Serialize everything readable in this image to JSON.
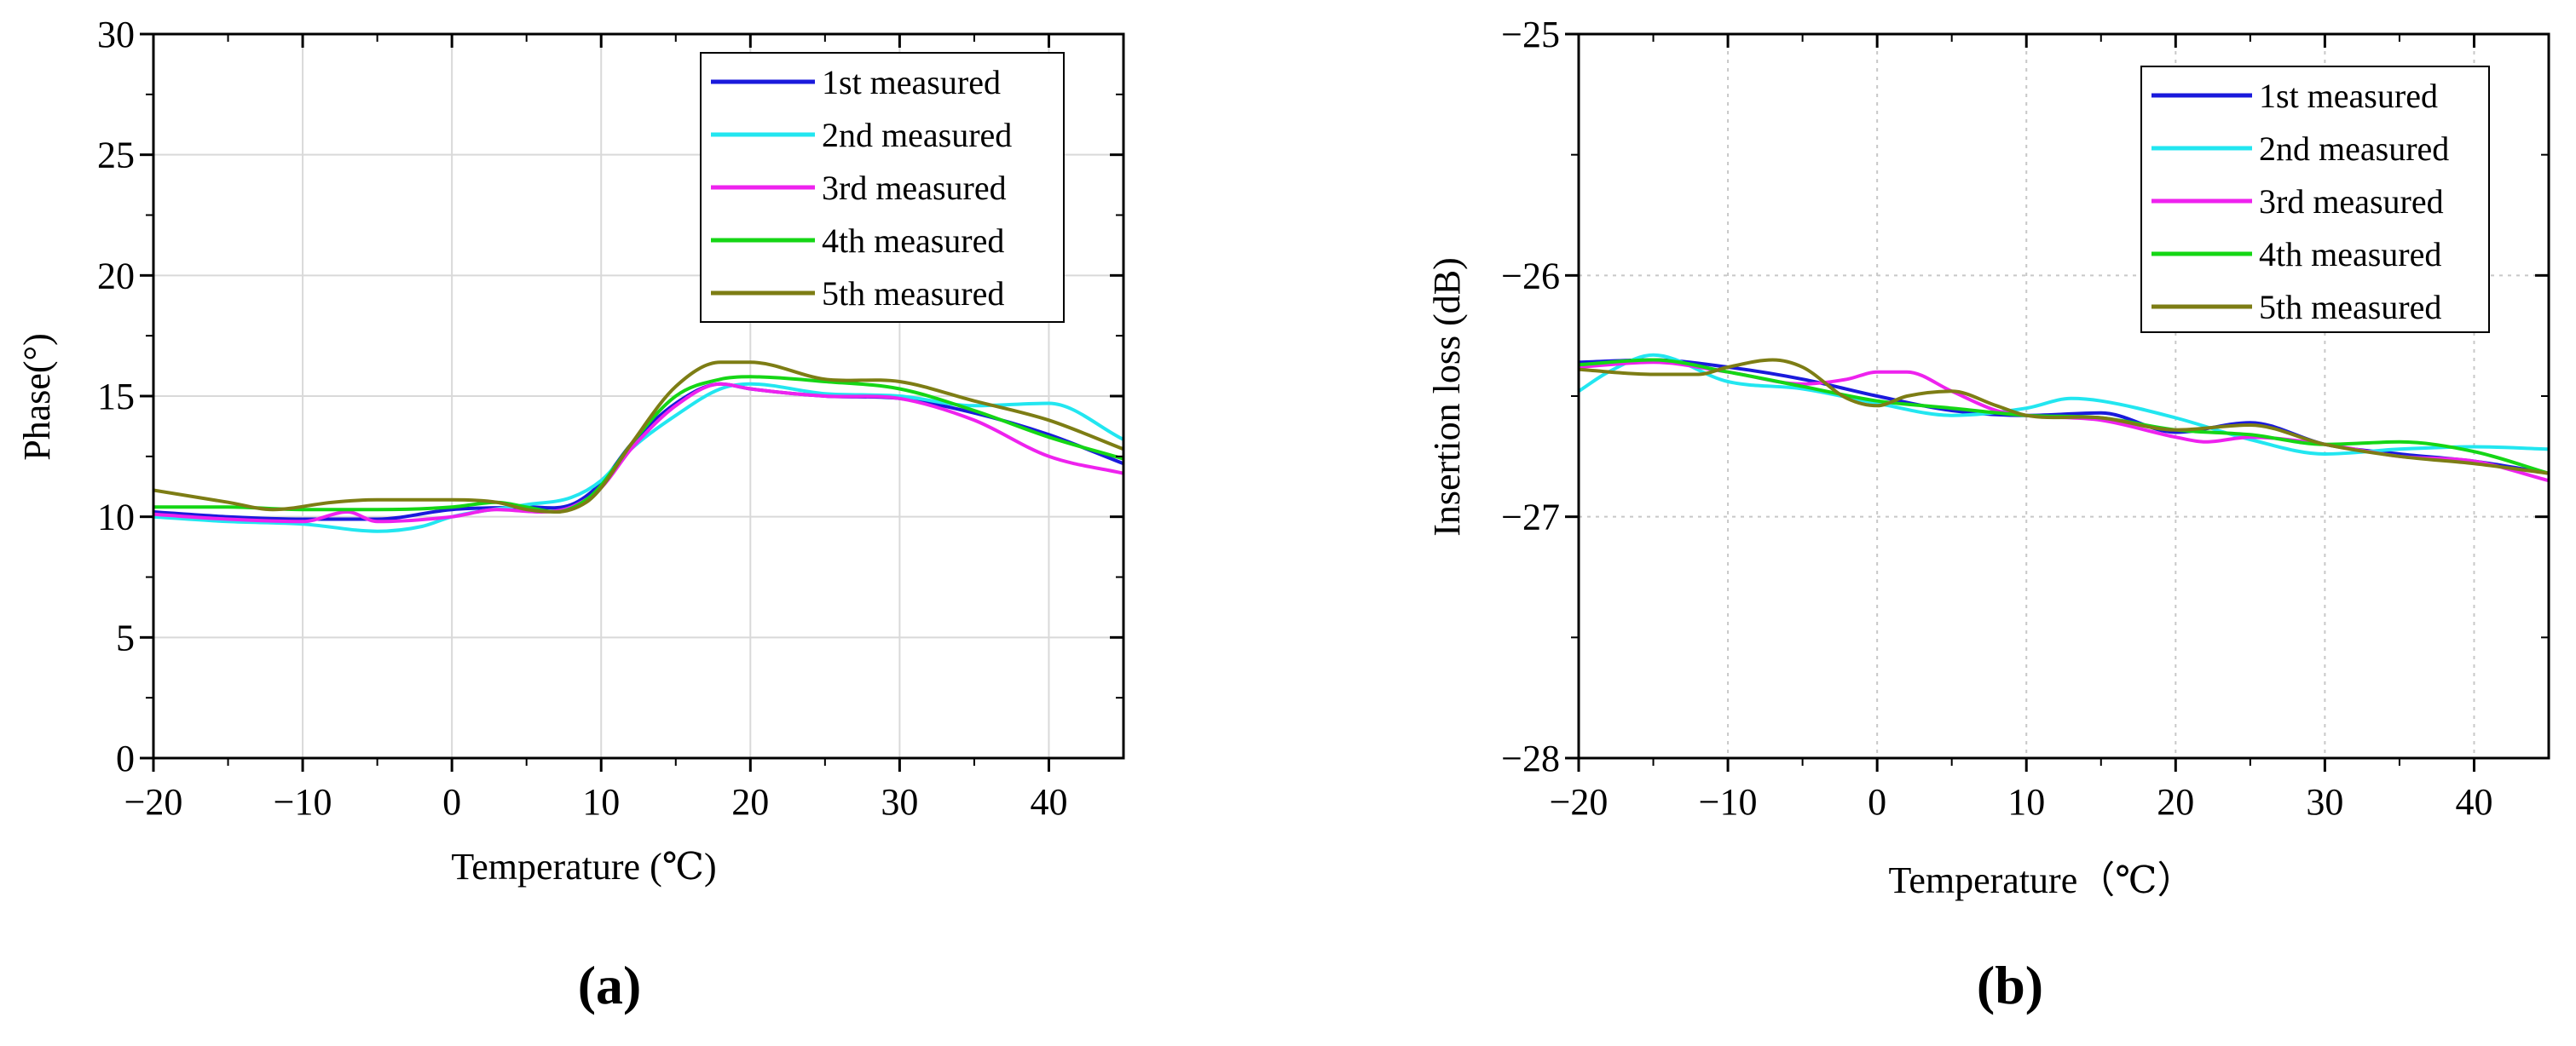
{
  "chart_data": [
    {
      "type": "line",
      "panel_label": "(a)",
      "xlabel": "Temperature (℃)",
      "ylabel": "Phase(°)",
      "xlim": [
        -20,
        45
      ],
      "ylim": [
        0,
        30
      ],
      "x_ticks": [
        -20,
        -10,
        0,
        10,
        20,
        30,
        40
      ],
      "y_ticks": [
        0,
        5,
        10,
        15,
        20,
        25,
        30
      ],
      "x_tick_labels": [
        "−20",
        "−10",
        "0",
        "10",
        "20",
        "30",
        "40"
      ],
      "y_tick_labels": [
        "0",
        "5",
        "10",
        "15",
        "20",
        "25",
        "30"
      ],
      "grid": true,
      "legend_position": "top-right",
      "series": [
        {
          "name": "1st measured",
          "color": "#1a1adc",
          "x": [
            -20,
            -15,
            -10,
            -5,
            0,
            5,
            8,
            10,
            12,
            15,
            18,
            20,
            25,
            30,
            35,
            40,
            45
          ],
          "y": [
            10.2,
            10.0,
            9.9,
            9.9,
            10.3,
            10.4,
            10.5,
            11.4,
            13.0,
            14.7,
            15.5,
            15.3,
            15.0,
            14.9,
            14.3,
            13.4,
            12.2
          ]
        },
        {
          "name": "2nd measured",
          "color": "#22e6f0",
          "x": [
            -20,
            -15,
            -10,
            -5,
            -2,
            0,
            5,
            8,
            10,
            12,
            15,
            18,
            20,
            25,
            30,
            35,
            40,
            45
          ],
          "y": [
            10.0,
            9.8,
            9.7,
            9.4,
            9.6,
            10.0,
            10.5,
            10.8,
            11.5,
            12.8,
            14.2,
            15.3,
            15.5,
            15.1,
            15.0,
            14.6,
            14.7,
            13.2
          ]
        },
        {
          "name": "3rd measured",
          "color": "#ee22ee",
          "x": [
            -20,
            -15,
            -10,
            -7,
            -5,
            0,
            3,
            6,
            8,
            10,
            12,
            15,
            18,
            20,
            25,
            30,
            35,
            40,
            45
          ],
          "y": [
            10.1,
            9.9,
            9.8,
            10.2,
            9.8,
            10.0,
            10.3,
            10.2,
            10.4,
            11.2,
            12.8,
            14.6,
            15.5,
            15.3,
            15.0,
            14.9,
            14.0,
            12.5,
            11.8
          ]
        },
        {
          "name": "4th measured",
          "color": "#15d615",
          "x": [
            -20,
            -15,
            -10,
            -5,
            0,
            3,
            5,
            7,
            9,
            10,
            12,
            15,
            18,
            20,
            25,
            30,
            35,
            40,
            45
          ],
          "y": [
            10.4,
            10.4,
            10.3,
            10.3,
            10.4,
            10.6,
            10.4,
            10.2,
            10.7,
            11.3,
            13.0,
            15.0,
            15.7,
            15.8,
            15.6,
            15.3,
            14.4,
            13.3,
            12.4
          ]
        },
        {
          "name": "5th measured",
          "color": "#7d7d14",
          "x": [
            -20,
            -15,
            -12,
            -8,
            -5,
            0,
            3,
            5,
            7,
            9,
            10,
            12,
            15,
            18,
            20,
            25,
            30,
            35,
            40,
            45
          ],
          "y": [
            11.1,
            10.6,
            10.3,
            10.6,
            10.7,
            10.7,
            10.6,
            10.3,
            10.2,
            10.6,
            11.2,
            13.0,
            15.4,
            16.4,
            16.4,
            15.7,
            15.6,
            14.8,
            14.0,
            12.8
          ]
        }
      ]
    },
    {
      "type": "line",
      "panel_label": "(b)",
      "xlabel": "Temperature（℃）",
      "ylabel": "Insertion loss (dB)",
      "xlim": [
        -20,
        45
      ],
      "ylim": [
        -28,
        -25
      ],
      "x_ticks": [
        -20,
        -10,
        0,
        10,
        20,
        30,
        40
      ],
      "y_ticks": [
        -28,
        -27,
        -26,
        -25
      ],
      "x_tick_labels": [
        "−20",
        "−10",
        "0",
        "10",
        "20",
        "30",
        "40"
      ],
      "y_tick_labels": [
        "−28",
        "−27",
        "−26",
        "−25"
      ],
      "grid": true,
      "grid_style": "dotted",
      "legend_position": "top-right",
      "series": [
        {
          "name": "1st measured",
          "color": "#1a1adc",
          "x": [
            -20,
            -15,
            -10,
            -5,
            0,
            5,
            10,
            15,
            20,
            25,
            30,
            35,
            40,
            45
          ],
          "y": [
            -26.36,
            -26.35,
            -26.38,
            -26.43,
            -26.5,
            -26.56,
            -26.58,
            -26.57,
            -26.65,
            -26.61,
            -26.7,
            -26.74,
            -26.77,
            -26.82
          ]
        },
        {
          "name": "2nd measured",
          "color": "#22e6f0",
          "x": [
            -20,
            -18,
            -15,
            -10,
            -5,
            0,
            5,
            10,
            13,
            15,
            20,
            25,
            30,
            35,
            40,
            45
          ],
          "y": [
            -26.48,
            -26.4,
            -26.33,
            -26.44,
            -26.47,
            -26.53,
            -26.58,
            -26.55,
            -26.51,
            -26.52,
            -26.59,
            -26.68,
            -26.74,
            -26.72,
            -26.71,
            -26.72
          ]
        },
        {
          "name": "3rd measured",
          "color": "#ee22ee",
          "x": [
            -20,
            -15,
            -10,
            -5,
            -2,
            0,
            2,
            5,
            8,
            10,
            15,
            20,
            22,
            25,
            30,
            35,
            40,
            45
          ],
          "y": [
            -26.38,
            -26.36,
            -26.4,
            -26.45,
            -26.43,
            -26.4,
            -26.4,
            -26.48,
            -26.56,
            -26.58,
            -26.6,
            -26.67,
            -26.69,
            -26.67,
            -26.7,
            -26.75,
            -26.77,
            -26.85
          ]
        },
        {
          "name": "4th measured",
          "color": "#15d615",
          "x": [
            -20,
            -15,
            -10,
            -5,
            0,
            5,
            10,
            15,
            20,
            25,
            30,
            35,
            40,
            45
          ],
          "y": [
            -26.37,
            -26.35,
            -26.4,
            -26.46,
            -26.52,
            -26.55,
            -26.58,
            -26.59,
            -26.64,
            -26.66,
            -26.7,
            -26.69,
            -26.73,
            -26.82
          ]
        },
        {
          "name": "5th measured",
          "color": "#7d7d14",
          "x": [
            -20,
            -15,
            -12,
            -10,
            -7,
            -5,
            -2,
            0,
            2,
            5,
            8,
            10,
            15,
            20,
            25,
            30,
            35,
            40,
            45
          ],
          "y": [
            -26.39,
            -26.41,
            -26.41,
            -26.38,
            -26.35,
            -26.38,
            -26.51,
            -26.54,
            -26.5,
            -26.48,
            -26.54,
            -26.58,
            -26.59,
            -26.64,
            -26.62,
            -26.7,
            -26.75,
            -26.78,
            -26.82
          ]
        }
      ]
    }
  ]
}
